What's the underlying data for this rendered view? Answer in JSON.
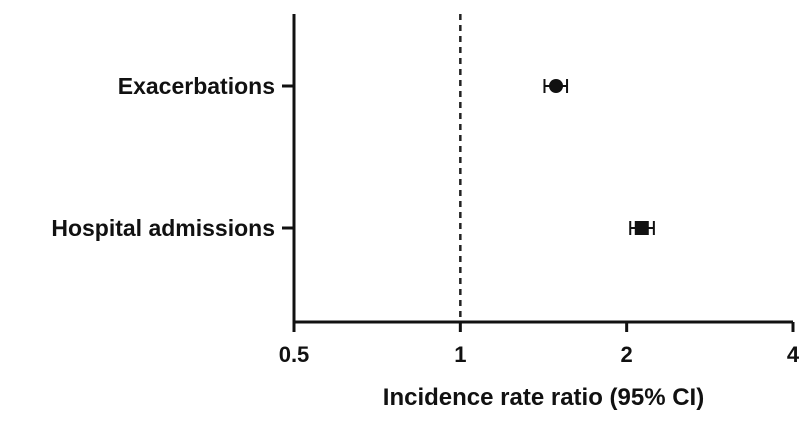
{
  "chart_data": {
    "type": "scatter",
    "subtype": "forest-plot",
    "scale_x": "log2",
    "xlim": [
      0.5,
      4
    ],
    "ticks": [
      {
        "value": 0.5,
        "label": "0.5"
      },
      {
        "value": 1,
        "label": "1"
      },
      {
        "value": 2,
        "label": "2"
      },
      {
        "value": 4,
        "label": "4"
      }
    ],
    "reference_line": 1,
    "xlabel": "Incidence rate ratio (95% CI)",
    "grid": false,
    "rows": [
      {
        "label": "Exacerbations",
        "estimate": 1.49,
        "ci_low": 1.42,
        "ci_high": 1.56,
        "marker": "circle"
      },
      {
        "label": "Hospital admissions",
        "estimate": 2.13,
        "ci_low": 2.03,
        "ci_high": 2.24,
        "marker": "square"
      }
    ],
    "colors": {
      "marker": "#111111",
      "axis": "#111111",
      "reference_line": "#222222"
    }
  }
}
